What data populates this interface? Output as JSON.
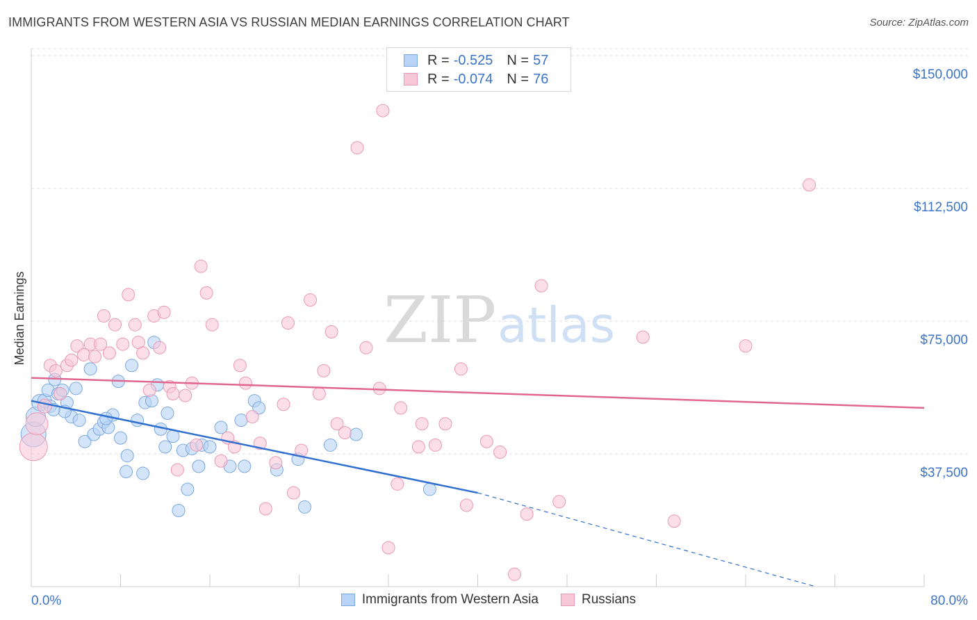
{
  "header": {
    "title": "IMMIGRANTS FROM WESTERN ASIA VS RUSSIAN MEDIAN EARNINGS CORRELATION CHART",
    "source": "Source: ZipAtlas.com"
  },
  "legend": {
    "rows": [
      {
        "r_label": "R =",
        "r_value": "-0.525",
        "n_label": "N =",
        "n_value": "57"
      },
      {
        "r_label": "R =",
        "r_value": "-0.074",
        "n_label": "N =",
        "n_value": "76"
      }
    ]
  },
  "bottom_legend": {
    "items": [
      "Immigrants from Western Asia",
      "Russians"
    ]
  },
  "colors": {
    "blue_fill": "#b8d3f5",
    "blue_stroke": "#7aa8e0",
    "blue_line": "#2f6fd0",
    "pink_fill": "#f8c8d8",
    "pink_stroke": "#e998b6",
    "pink_line": "#e06690",
    "grid": "#dddddd",
    "tick_text": "#3b73c8"
  },
  "chart_data": {
    "type": "scatter",
    "title": "IMMIGRANTS FROM WESTERN ASIA VS RUSSIAN MEDIAN EARNINGS CORRELATION CHART",
    "xlabel": "",
    "ylabel": "Median Earnings",
    "xlim": [
      0,
      80
    ],
    "ylim": [
      0,
      152000
    ],
    "x_tick_labels": [
      "0.0%",
      "80.0%"
    ],
    "y_ticks": [
      37500,
      75000,
      112500,
      150000
    ],
    "y_tick_labels": [
      "$37,500",
      "$75,000",
      "$112,500",
      "$150,000"
    ],
    "grid": true,
    "legend_position": "top-center",
    "watermark": "ZIPatlas",
    "series": [
      {
        "name": "Immigrants from Western Asia",
        "trend": {
          "x": [
            0,
            40
          ],
          "y": [
            52500,
            26500
          ],
          "dashed_to": [
            80,
            -8500
          ]
        },
        "points": [
          [
            0.2,
            43000,
            18
          ],
          [
            0.4,
            48000,
            14
          ],
          [
            0.8,
            52000,
            12
          ],
          [
            1.2,
            52500,
            10
          ],
          [
            1.5,
            55500,
            9
          ],
          [
            1.7,
            51000,
            9
          ],
          [
            2.1,
            58500,
            9
          ],
          [
            2.4,
            54500,
            9
          ],
          [
            2.8,
            55500,
            9
          ],
          [
            3.2,
            52000,
            9
          ],
          [
            3.6,
            48000,
            9
          ],
          [
            4.0,
            56000,
            9
          ],
          [
            4.3,
            47000,
            9
          ],
          [
            4.8,
            41000,
            9
          ],
          [
            5.3,
            61500,
            9
          ],
          [
            5.6,
            43000,
            9
          ],
          [
            6.1,
            44500,
            9
          ],
          [
            6.5,
            46500,
            9
          ],
          [
            6.9,
            45000,
            9
          ],
          [
            7.3,
            48500,
            9
          ],
          [
            7.8,
            58000,
            9
          ],
          [
            8.0,
            42000,
            9
          ],
          [
            8.5,
            32500,
            9
          ],
          [
            8.6,
            37000,
            9
          ],
          [
            9.0,
            62500,
            9
          ],
          [
            10.0,
            32000,
            9
          ],
          [
            10.2,
            52000,
            9
          ],
          [
            10.8,
            52500,
            9
          ],
          [
            11.0,
            69000,
            9
          ],
          [
            11.3,
            57000,
            9
          ],
          [
            11.6,
            44500,
            9
          ],
          [
            12.2,
            49000,
            9
          ],
          [
            12.7,
            42500,
            9
          ],
          [
            13.2,
            21500,
            9
          ],
          [
            13.6,
            38500,
            9
          ],
          [
            14.0,
            27500,
            9
          ],
          [
            14.4,
            39000,
            9
          ],
          [
            15.0,
            34000,
            9
          ],
          [
            15.3,
            40000,
            9
          ],
          [
            16.0,
            39500,
            9
          ],
          [
            17.0,
            45000,
            9
          ],
          [
            17.8,
            34000,
            9
          ],
          [
            18.8,
            47000,
            9
          ],
          [
            19.1,
            34000,
            9
          ],
          [
            20.0,
            52500,
            9
          ],
          [
            20.4,
            50500,
            9
          ],
          [
            22.0,
            33000,
            9
          ],
          [
            23.9,
            36000,
            9
          ],
          [
            24.5,
            22500,
            9
          ],
          [
            26.8,
            40000,
            9
          ],
          [
            29.1,
            43000,
            9
          ],
          [
            35.7,
            27500,
            9
          ],
          [
            3.0,
            49500,
            9
          ],
          [
            2.0,
            50000,
            9
          ],
          [
            6.7,
            47500,
            9
          ],
          [
            9.5,
            47000,
            9
          ],
          [
            12.0,
            39500,
            9
          ]
        ]
      },
      {
        "name": "Russians",
        "trend": {
          "x": [
            0,
            80
          ],
          "y": [
            59000,
            50500
          ]
        },
        "points": [
          [
            0.2,
            39500,
            20
          ],
          [
            0.5,
            46000,
            16
          ],
          [
            1.2,
            51000,
            10
          ],
          [
            1.7,
            62500,
            9
          ],
          [
            2.2,
            61000,
            9
          ],
          [
            2.6,
            54500,
            9
          ],
          [
            3.2,
            62500,
            9
          ],
          [
            3.6,
            64000,
            9
          ],
          [
            4.1,
            68000,
            9
          ],
          [
            4.7,
            65500,
            9
          ],
          [
            5.3,
            68500,
            9
          ],
          [
            5.7,
            65000,
            9
          ],
          [
            6.2,
            68500,
            9
          ],
          [
            6.5,
            76500,
            9
          ],
          [
            7.0,
            66000,
            9
          ],
          [
            7.5,
            74000,
            9
          ],
          [
            8.2,
            68500,
            9
          ],
          [
            8.7,
            82500,
            9
          ],
          [
            9.3,
            74000,
            9
          ],
          [
            9.6,
            69000,
            9
          ],
          [
            10.0,
            66000,
            9
          ],
          [
            10.6,
            55500,
            9
          ],
          [
            11.0,
            76500,
            9
          ],
          [
            11.5,
            67500,
            9
          ],
          [
            11.9,
            77500,
            9
          ],
          [
            12.4,
            56500,
            9
          ],
          [
            12.7,
            54500,
            9
          ],
          [
            13.1,
            33000,
            9
          ],
          [
            13.8,
            54000,
            9
          ],
          [
            14.4,
            57500,
            9
          ],
          [
            14.8,
            40000,
            9
          ],
          [
            15.2,
            90500,
            9
          ],
          [
            15.7,
            83000,
            9
          ],
          [
            16.2,
            74000,
            9
          ],
          [
            17.0,
            35500,
            9
          ],
          [
            17.6,
            42000,
            9
          ],
          [
            18.2,
            39500,
            9
          ],
          [
            18.7,
            62500,
            9
          ],
          [
            19.2,
            57500,
            9
          ],
          [
            19.8,
            48000,
            9
          ],
          [
            20.5,
            40500,
            9
          ],
          [
            21.0,
            22000,
            9
          ],
          [
            21.9,
            35000,
            9
          ],
          [
            22.6,
            51500,
            9
          ],
          [
            23.0,
            74500,
            9
          ],
          [
            23.5,
            26500,
            9
          ],
          [
            24.2,
            38500,
            9
          ],
          [
            25.0,
            81000,
            9
          ],
          [
            25.8,
            54500,
            9
          ],
          [
            26.2,
            61000,
            9
          ],
          [
            26.9,
            72000,
            9
          ],
          [
            27.4,
            46000,
            9
          ],
          [
            28.1,
            43500,
            9
          ],
          [
            29.2,
            124000,
            9
          ],
          [
            30.0,
            67500,
            9
          ],
          [
            31.2,
            56000,
            9
          ],
          [
            32.8,
            29000,
            9
          ],
          [
            33.1,
            50500,
            9
          ],
          [
            34.7,
            39500,
            9
          ],
          [
            35.0,
            46000,
            9
          ],
          [
            36.2,
            40000,
            9
          ],
          [
            37.1,
            46000,
            9
          ],
          [
            38.5,
            61500,
            9
          ],
          [
            39.0,
            23000,
            9
          ],
          [
            40.8,
            41000,
            9
          ],
          [
            42.0,
            38000,
            9
          ],
          [
            43.3,
            3500,
            9
          ],
          [
            44.4,
            20500,
            9
          ],
          [
            45.7,
            85000,
            9
          ],
          [
            47.3,
            24000,
            9
          ],
          [
            54.8,
            70500,
            9
          ],
          [
            57.6,
            18500,
            9
          ],
          [
            64.0,
            68000,
            9
          ],
          [
            69.7,
            113500,
            9
          ],
          [
            32.0,
            11000,
            9
          ],
          [
            31.5,
            134500,
            9
          ]
        ]
      }
    ]
  }
}
